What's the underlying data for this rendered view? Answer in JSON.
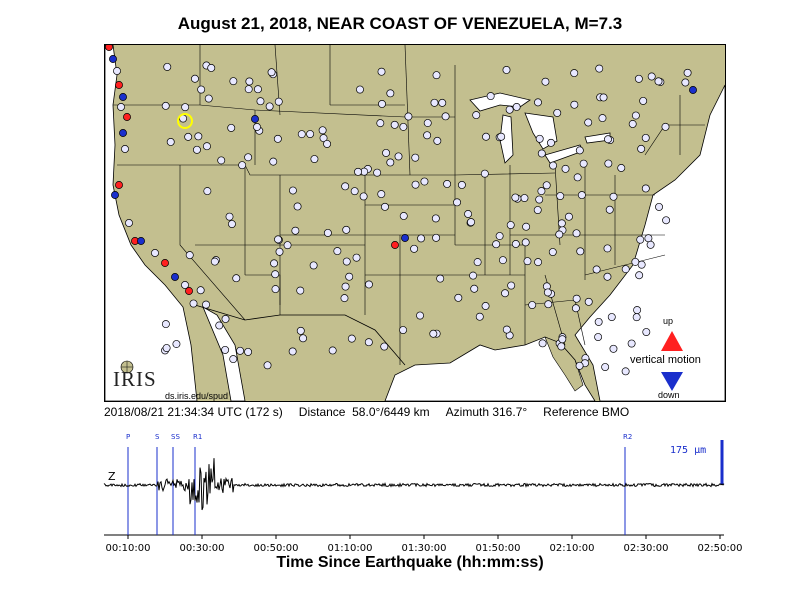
{
  "title": "August 21, 2018, NEAR COAST OF VENEZUELA, M=7.3",
  "map": {
    "logo": "IRIS",
    "logo_url": "ds.iris.edu/spud",
    "legend": {
      "up": "up",
      "vertical_motion": "vertical motion",
      "down": "down"
    },
    "colors": {
      "land": "#c3bf8f",
      "water": "#ffffff",
      "up": "#ff2020",
      "down": "#1a2fcc",
      "neutral": "#e8e8ff",
      "highlight": "#ffff00"
    }
  },
  "info": {
    "time": "2018/08/21 21:34:34 UTC (172 s)",
    "distance": "Distance  58.0°/6449 km",
    "azimuth": "Azimuth 316.7°",
    "reference": "Reference BMO"
  },
  "seismogram": {
    "component": "Z",
    "scale_label": "175 μm",
    "phases": [
      "P",
      "S",
      "SS",
      "R1",
      "R2"
    ],
    "x_tick_labels": [
      "00:10:00",
      "00:30:00",
      "00:50:00",
      "01:10:00",
      "01:30:00",
      "01:50:00",
      "02:10:00",
      "02:30:00",
      "02:50:00"
    ],
    "x_label": "Time Since Earthquake (hh:mm:ss)"
  }
}
